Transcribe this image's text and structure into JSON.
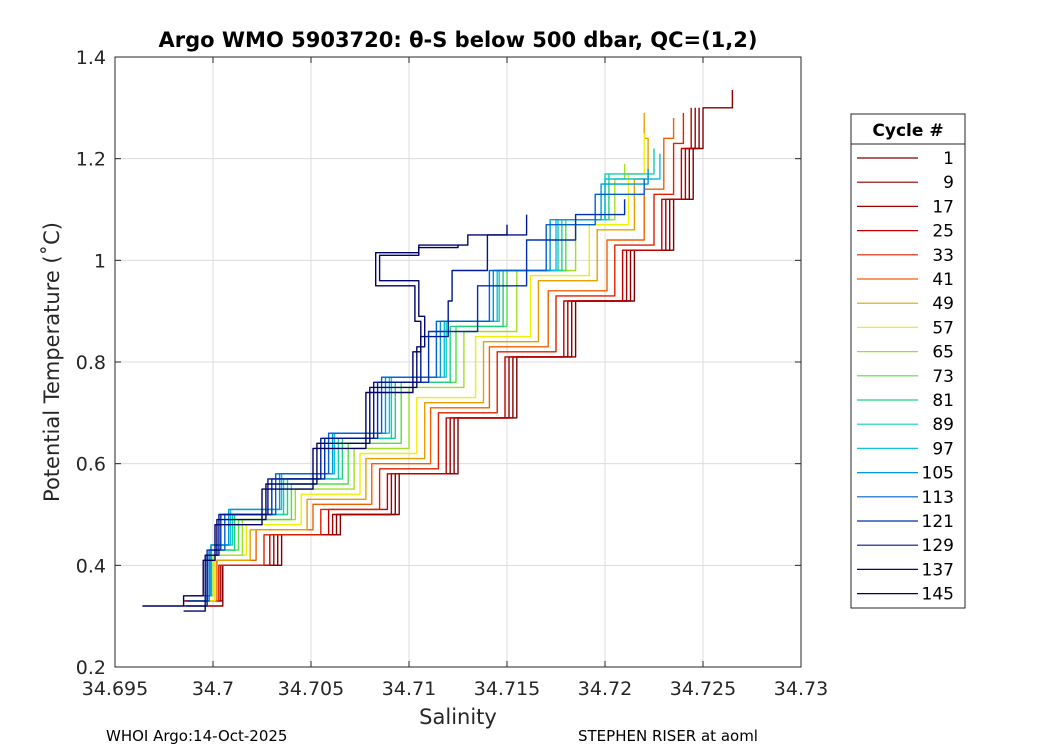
{
  "chart_data": {
    "type": "line",
    "title": "Argo WMO 5903720: θ-S below 500 dbar,  QC=(1,2)",
    "xlabel": "Salinity",
    "ylabel": "Potential Temperature (˚C)",
    "xlim": [
      34.695,
      34.73
    ],
    "ylim": [
      0.2,
      1.4
    ],
    "xticks": [
      34.695,
      34.7,
      34.705,
      34.71,
      34.715,
      34.72,
      34.725,
      34.73
    ],
    "xtick_labels": [
      "34.695",
      "34.7",
      "34.705",
      "34.71",
      "34.715",
      "34.72",
      "34.725",
      "34.73"
    ],
    "yticks": [
      0.2,
      0.4,
      0.6,
      0.8,
      1.0,
      1.2,
      1.4
    ],
    "ytick_labels": [
      "0.2",
      "0.4",
      "0.6",
      "0.8",
      "1",
      "1.2",
      "1.4"
    ],
    "grid": true,
    "legend_title": "Cycle #",
    "legend_position": "right",
    "series": [
      {
        "name": "1",
        "color": "#800000",
        "points": [
          [
            34.6985,
            0.33
          ],
          [
            34.7005,
            0.4
          ],
          [
            34.7035,
            0.46
          ],
          [
            34.7065,
            0.5
          ],
          [
            34.7095,
            0.58
          ],
          [
            34.7125,
            0.69
          ],
          [
            34.7155,
            0.81
          ],
          [
            34.7185,
            0.92
          ],
          [
            34.7215,
            1.02
          ],
          [
            34.7235,
            1.12
          ],
          [
            34.7245,
            1.22
          ],
          [
            34.725,
            1.3
          ],
          [
            34.7265,
            1.335
          ]
        ]
      },
      {
        "name": "9",
        "color": "#8c0000",
        "points": [
          [
            34.6985,
            0.32
          ],
          [
            34.7005,
            0.4
          ],
          [
            34.7033,
            0.46
          ],
          [
            34.7063,
            0.5
          ],
          [
            34.7093,
            0.58
          ],
          [
            34.7123,
            0.69
          ],
          [
            34.7153,
            0.81
          ],
          [
            34.7183,
            0.92
          ],
          [
            34.7213,
            1.02
          ],
          [
            34.7233,
            1.12
          ],
          [
            34.7243,
            1.22
          ],
          [
            34.7248,
            1.3
          ]
        ]
      },
      {
        "name": "17",
        "color": "#a00000",
        "points": [
          [
            34.6986,
            0.33
          ],
          [
            34.7004,
            0.4
          ],
          [
            34.7031,
            0.46
          ],
          [
            34.7061,
            0.5
          ],
          [
            34.7091,
            0.58
          ],
          [
            34.7121,
            0.69
          ],
          [
            34.7151,
            0.81
          ],
          [
            34.7181,
            0.92
          ],
          [
            34.7211,
            1.02
          ],
          [
            34.7231,
            1.12
          ],
          [
            34.7241,
            1.22
          ],
          [
            34.7246,
            1.3
          ]
        ]
      },
      {
        "name": "25",
        "color": "#c00000",
        "points": [
          [
            34.6986,
            0.33
          ],
          [
            34.7003,
            0.4
          ],
          [
            34.7029,
            0.46
          ],
          [
            34.7059,
            0.51
          ],
          [
            34.7089,
            0.58
          ],
          [
            34.7119,
            0.69
          ],
          [
            34.7149,
            0.81
          ],
          [
            34.7179,
            0.92
          ],
          [
            34.7209,
            1.02
          ],
          [
            34.7229,
            1.12
          ],
          [
            34.7239,
            1.22
          ],
          [
            34.7244,
            1.3
          ]
        ]
      },
      {
        "name": "33",
        "color": "#e02000",
        "points": [
          [
            34.6987,
            0.33
          ],
          [
            34.7003,
            0.4
          ],
          [
            34.7026,
            0.46
          ],
          [
            34.7055,
            0.51
          ],
          [
            34.7085,
            0.59
          ],
          [
            34.7115,
            0.7
          ],
          [
            34.7145,
            0.82
          ],
          [
            34.7175,
            0.93
          ],
          [
            34.7205,
            1.03
          ],
          [
            34.7225,
            1.13
          ],
          [
            34.7235,
            1.23
          ],
          [
            34.724,
            1.29
          ]
        ]
      },
      {
        "name": "41",
        "color": "#f06000",
        "points": [
          [
            34.6987,
            0.33
          ],
          [
            34.7002,
            0.41
          ],
          [
            34.7022,
            0.47
          ],
          [
            34.7051,
            0.52
          ],
          [
            34.7081,
            0.6
          ],
          [
            34.7111,
            0.71
          ],
          [
            34.7141,
            0.83
          ],
          [
            34.7171,
            0.94
          ],
          [
            34.7201,
            1.04
          ],
          [
            34.722,
            1.14
          ],
          [
            34.723,
            1.24
          ],
          [
            34.7235,
            1.28
          ]
        ]
      },
      {
        "name": "49",
        "color": "#e8a000",
        "points": [
          [
            34.6987,
            0.33
          ],
          [
            34.7001,
            0.41
          ],
          [
            34.7019,
            0.47
          ],
          [
            34.7048,
            0.53
          ],
          [
            34.7078,
            0.61
          ],
          [
            34.7108,
            0.72
          ],
          [
            34.7138,
            0.84
          ],
          [
            34.7166,
            0.96
          ],
          [
            34.7196,
            1.06
          ],
          [
            34.7215,
            1.16
          ],
          [
            34.7222,
            1.24
          ],
          [
            34.722,
            1.29
          ]
        ]
      },
      {
        "name": "57",
        "color": "#f0f000",
        "points": [
          [
            34.6988,
            0.33
          ],
          [
            34.7001,
            0.42
          ],
          [
            34.7017,
            0.48
          ],
          [
            34.7045,
            0.54
          ],
          [
            34.7075,
            0.62
          ],
          [
            34.7104,
            0.73
          ],
          [
            34.7134,
            0.85
          ],
          [
            34.7162,
            0.97
          ],
          [
            34.7192,
            1.07
          ],
          [
            34.7212,
            1.17
          ],
          [
            34.722,
            1.25
          ]
        ]
      },
      {
        "name": "65",
        "color": "#a0e020",
        "points": [
          [
            34.6988,
            0.34
          ],
          [
            34.7,
            0.42
          ],
          [
            34.7015,
            0.49
          ],
          [
            34.7042,
            0.55
          ],
          [
            34.7072,
            0.63
          ],
          [
            34.71,
            0.75
          ],
          [
            34.7128,
            0.86
          ],
          [
            34.7155,
            0.98
          ],
          [
            34.7185,
            1.08
          ],
          [
            34.7205,
            1.16
          ],
          [
            34.721,
            1.19
          ]
        ]
      },
      {
        "name": "73",
        "color": "#50e040",
        "points": [
          [
            34.6988,
            0.34
          ],
          [
            34.6999,
            0.43
          ],
          [
            34.7013,
            0.49
          ],
          [
            34.704,
            0.56
          ],
          [
            34.7069,
            0.64
          ],
          [
            34.7096,
            0.76
          ],
          [
            34.7124,
            0.87
          ],
          [
            34.715,
            0.98
          ],
          [
            34.718,
            1.08
          ],
          [
            34.72,
            1.15
          ]
        ]
      },
      {
        "name": "81",
        "color": "#20d080",
        "points": [
          [
            34.6988,
            0.34
          ],
          [
            34.6999,
            0.43
          ],
          [
            34.7011,
            0.5
          ],
          [
            34.7038,
            0.57
          ],
          [
            34.7066,
            0.65
          ],
          [
            34.7093,
            0.76
          ],
          [
            34.7121,
            0.87
          ],
          [
            34.7148,
            0.98
          ],
          [
            34.7178,
            1.08
          ],
          [
            34.7202,
            1.17
          ]
        ]
      },
      {
        "name": "89",
        "color": "#10d0b0",
        "points": [
          [
            34.6989,
            0.34
          ],
          [
            34.6999,
            0.44
          ],
          [
            34.701,
            0.5
          ],
          [
            34.7036,
            0.57
          ],
          [
            34.7064,
            0.65
          ],
          [
            34.7091,
            0.77
          ],
          [
            34.7119,
            0.88
          ],
          [
            34.7146,
            0.98
          ],
          [
            34.7176,
            1.08
          ],
          [
            34.72,
            1.17
          ],
          [
            34.7225,
            1.22
          ]
        ]
      },
      {
        "name": "97",
        "color": "#10c0e0",
        "points": [
          [
            34.6989,
            0.34
          ],
          [
            34.6999,
            0.44
          ],
          [
            34.7009,
            0.51
          ],
          [
            34.7035,
            0.58
          ],
          [
            34.7062,
            0.66
          ],
          [
            34.709,
            0.77
          ],
          [
            34.7118,
            0.88
          ],
          [
            34.7145,
            0.98
          ],
          [
            34.7175,
            1.08
          ],
          [
            34.72,
            1.16
          ],
          [
            34.7228,
            1.21
          ]
        ]
      },
      {
        "name": "105",
        "color": "#0098d8",
        "points": [
          [
            34.6988,
            0.34
          ],
          [
            34.6999,
            0.44
          ],
          [
            34.7008,
            0.51
          ],
          [
            34.7034,
            0.58
          ],
          [
            34.7061,
            0.66
          ],
          [
            34.7088,
            0.77
          ],
          [
            34.7116,
            0.88
          ],
          [
            34.7143,
            0.98
          ],
          [
            34.7172,
            1.08
          ],
          [
            34.7198,
            1.15
          ],
          [
            34.7222,
            1.18
          ]
        ]
      },
      {
        "name": "113",
        "color": "#0060d0",
        "points": [
          [
            34.6988,
            0.33
          ],
          [
            34.6998,
            0.43
          ],
          [
            34.7006,
            0.5
          ],
          [
            34.7032,
            0.58
          ],
          [
            34.7059,
            0.66
          ],
          [
            34.7086,
            0.77
          ],
          [
            34.7114,
            0.88
          ],
          [
            34.7141,
            0.98
          ],
          [
            34.717,
            1.07
          ],
          [
            34.7195,
            1.13
          ],
          [
            34.722,
            1.16
          ]
        ]
      },
      {
        "name": "121",
        "color": "#0030b0",
        "points": [
          [
            34.6987,
            0.33
          ],
          [
            34.6997,
            0.43
          ],
          [
            34.7004,
            0.5
          ],
          [
            34.703,
            0.57
          ],
          [
            34.7057,
            0.65
          ],
          [
            34.7084,
            0.76
          ],
          [
            34.711,
            0.86
          ],
          [
            34.7135,
            0.95
          ],
          [
            34.716,
            1.04
          ],
          [
            34.7185,
            1.09
          ],
          [
            34.721,
            1.12
          ]
        ]
      },
      {
        "name": "129",
        "color": "#001890",
        "points": [
          [
            34.6986,
            0.32
          ],
          [
            34.6997,
            0.42
          ],
          [
            34.7003,
            0.5
          ],
          [
            34.7028,
            0.57
          ],
          [
            34.7055,
            0.65
          ],
          [
            34.7082,
            0.76
          ],
          [
            34.7106,
            0.85
          ],
          [
            34.712,
            0.92
          ],
          [
            34.7122,
            0.98
          ],
          [
            34.714,
            1.05
          ],
          [
            34.716,
            1.09
          ]
        ]
      },
      {
        "name": "137",
        "color": "#000870",
        "points": [
          [
            34.6985,
            0.31
          ],
          [
            34.6996,
            0.42
          ],
          [
            34.7002,
            0.49
          ],
          [
            34.7027,
            0.56
          ],
          [
            34.7053,
            0.64
          ],
          [
            34.708,
            0.75
          ],
          [
            34.7104,
            0.83
          ],
          [
            34.7108,
            0.89
          ],
          [
            34.7105,
            0.96
          ],
          [
            34.7085,
            1.01
          ],
          [
            34.7105,
            1.03
          ],
          [
            34.713,
            1.05
          ],
          [
            34.715,
            1.07
          ]
        ]
      },
      {
        "name": "145",
        "color": "#000060",
        "points": [
          [
            34.6964,
            0.32
          ],
          [
            34.6985,
            0.34
          ],
          [
            34.6995,
            0.41
          ],
          [
            34.7001,
            0.48
          ],
          [
            34.7025,
            0.55
          ],
          [
            34.7051,
            0.63
          ],
          [
            34.7078,
            0.74
          ],
          [
            34.7102,
            0.82
          ],
          [
            34.7106,
            0.88
          ],
          [
            34.7103,
            0.95
          ],
          [
            34.7083,
            1.015
          ],
          [
            34.7105,
            1.025
          ],
          [
            34.7125,
            1.03
          ]
        ]
      }
    ]
  },
  "footer": {
    "left": "WHOI Argo:14-Oct-2025",
    "right": "STEPHEN RISER at aoml"
  }
}
